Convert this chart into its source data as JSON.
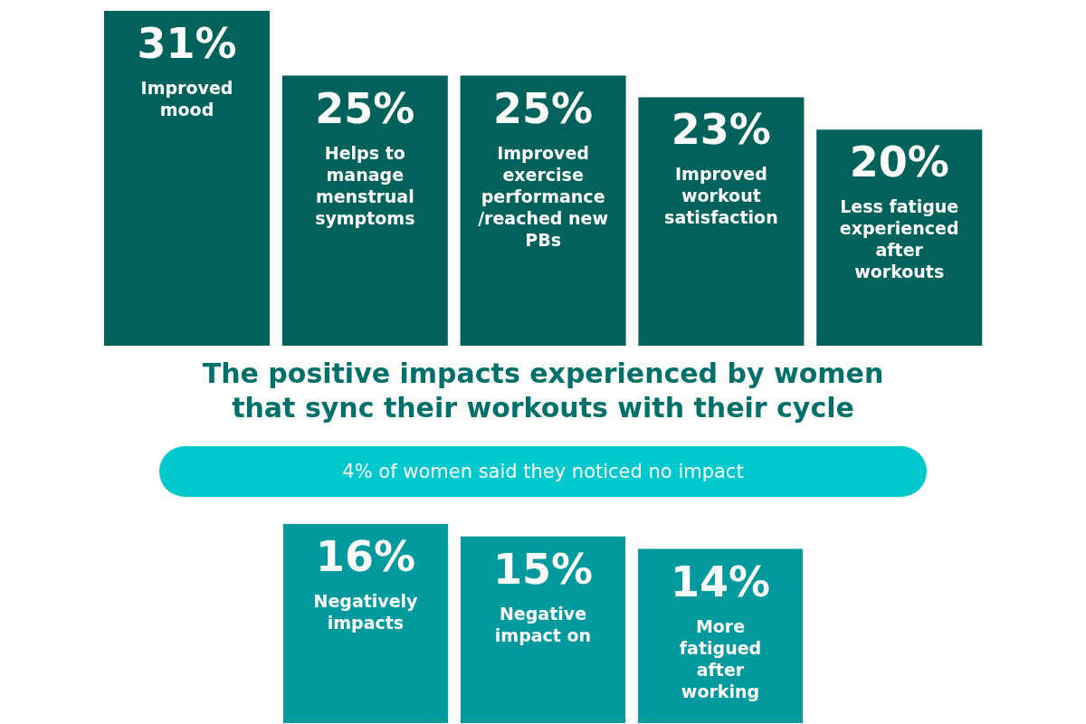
{
  "chart_data": [
    {
      "type": "bar",
      "title": "The positive impacts experienced by women that sync their workouts with their cycle",
      "categories": [
        "Improved mood",
        "Helps to manage menstrual symptoms",
        "Improved exercise performance /reached new PBs",
        "Improved workout satisfaction",
        "Less fatigue experienced after workouts"
      ],
      "values": [
        31,
        25,
        25,
        23,
        20
      ],
      "value_labels": [
        "31%",
        "25%",
        "25%",
        "23%",
        "20%"
      ],
      "color": "#00625a",
      "annotations": [
        "4% of women said they noticed no impact"
      ]
    },
    {
      "type": "bar",
      "categories": [
        "Negatively impacts",
        "Negative impact on",
        "More fatigued after working"
      ],
      "values": [
        16,
        15,
        14
      ],
      "value_labels": [
        "16%",
        "15%",
        "14%"
      ],
      "color": "#00999e"
    }
  ]
}
